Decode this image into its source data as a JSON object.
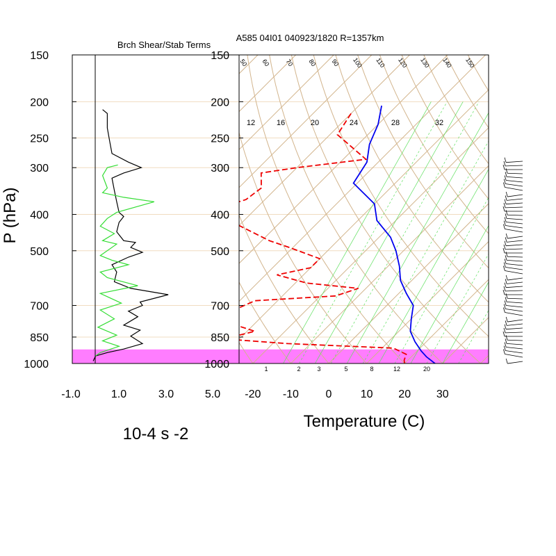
{
  "colors": {
    "background": "#ffffff",
    "isotherm_adiabat": "#d2b48c",
    "isobar_line": "#f0dcc0",
    "mixing_ratio": "#5fe05f",
    "temperature": "#0000ee",
    "dewpoint": "#ee0000",
    "shear_curve": "#000000",
    "stability_curve": "#33dd33",
    "highlight_band": "#ff66ff"
  },
  "chart_data": [
    {
      "type": "line",
      "title": "Brch Shear/Stab Terms",
      "xlabel": "10-4 s -2",
      "ylabel": "P (hPa)",
      "xlim": [
        -1.0,
        5.0
      ],
      "xticks": [
        "-1.0",
        "1.0",
        "3.0",
        "5.0"
      ],
      "yticks": [
        "150",
        "200",
        "250",
        "300",
        "400",
        "500",
        "700",
        "850",
        "1000"
      ],
      "y_scale": "log pressure (inverted)",
      "series": [
        {
          "color": "black",
          "points": [
            [
              0.3,
              210
            ],
            [
              0.5,
              215
            ],
            [
              0.5,
              235
            ],
            [
              0.6,
              255
            ],
            [
              0.7,
              275
            ],
            [
              1.4,
              290
            ],
            [
              1.95,
              300
            ],
            [
              1.2,
              310
            ],
            [
              0.7,
              320
            ],
            [
              0.8,
              345
            ],
            [
              0.9,
              370
            ],
            [
              1.0,
              395
            ],
            [
              1.2,
              405
            ],
            [
              1.0,
              420
            ],
            [
              0.9,
              445
            ],
            [
              1.2,
              470
            ],
            [
              1.7,
              475
            ],
            [
              1.5,
              490
            ],
            [
              2.0,
              505
            ],
            [
              1.4,
              520
            ],
            [
              0.7,
              545
            ],
            [
              0.9,
              570
            ],
            [
              0.8,
              605
            ],
            [
              1.5,
              630
            ],
            [
              3.1,
              655
            ],
            [
              1.9,
              685
            ],
            [
              2.0,
              700
            ],
            [
              1.4,
              725
            ],
            [
              1.8,
              750
            ],
            [
              1.2,
              790
            ],
            [
              1.9,
              815
            ],
            [
              1.5,
              845
            ],
            [
              2.0,
              885
            ],
            [
              1.2,
              915
            ],
            [
              0.5,
              935
            ],
            [
              0.0,
              955
            ],
            [
              -0.1,
              985
            ]
          ]
        },
        {
          "color": "green",
          "points": [
            [
              0.95,
              295
            ],
            [
              0.5,
              300
            ],
            [
              0.3,
              315
            ],
            [
              0.5,
              340
            ],
            [
              0.3,
              350
            ],
            [
              1.2,
              360
            ],
            [
              2.5,
              370
            ],
            [
              0.9,
              395
            ],
            [
              0.5,
              410
            ],
            [
              0.2,
              430
            ],
            [
              0.8,
              450
            ],
            [
              0.3,
              470
            ],
            [
              0.9,
              480
            ],
            [
              0.2,
              515
            ],
            [
              0.7,
              530
            ],
            [
              1.4,
              545
            ],
            [
              0.2,
              570
            ],
            [
              0.5,
              590
            ],
            [
              1.8,
              620
            ],
            [
              0.2,
              650
            ],
            [
              1.1,
              690
            ],
            [
              0.2,
              720
            ],
            [
              0.8,
              760
            ],
            [
              0.1,
              800
            ],
            [
              0.9,
              840
            ],
            [
              0.3,
              870
            ],
            [
              1.0,
              900
            ],
            [
              0.2,
              935
            ],
            [
              0.0,
              955
            ]
          ]
        }
      ]
    },
    {
      "type": "line",
      "title": "A585 04I01 040923/1820 R=1357km",
      "xlabel": "Temperature (C)",
      "ylabel": "",
      "xticks": [
        "-20",
        "-10",
        "0",
        "10",
        "20",
        "30"
      ],
      "yticks": [
        "150",
        "200",
        "250",
        "300",
        "400",
        "500",
        "700",
        "850",
        "1000"
      ],
      "skew_x": true,
      "mixing_ratio_labels_top": [
        "12",
        "16",
        "20",
        "24",
        "28",
        "32"
      ],
      "mixing_ratio_labels_bottom": [
        "1",
        "2",
        "3",
        "5",
        "8",
        "12",
        "20"
      ],
      "adiabat_labels_top": [
        "50",
        "60",
        "70",
        "80",
        "90",
        "100",
        "110",
        "120",
        "130",
        "140",
        "150"
      ],
      "highlight_band_hpa": [
        925,
        1000
      ],
      "series": [
        {
          "name": "Temperature",
          "color": "blue",
          "points": [
            [
              -54,
              205
            ],
            [
              -50,
              230
            ],
            [
              -47,
              260
            ],
            [
              -43,
              290
            ],
            [
              -41,
              330
            ],
            [
              -30,
              375
            ],
            [
              -25,
              415
            ],
            [
              -17,
              460
            ],
            [
              -12,
              500
            ],
            [
              -7,
              550
            ],
            [
              -3,
              600
            ],
            [
              2,
              650
            ],
            [
              7,
              700
            ],
            [
              10,
              760
            ],
            [
              13,
              820
            ],
            [
              17,
              875
            ],
            [
              21,
              925
            ],
            [
              24,
              960
            ],
            [
              28,
              1000
            ]
          ]
        },
        {
          "name": "Dewpoint",
          "color": "red",
          "points": [
            [
              -60,
              215
            ],
            [
              -58,
              245
            ],
            [
              -44,
              285
            ],
            [
              -60,
              300
            ],
            [
              -68,
              310
            ],
            [
              -64,
              340
            ],
            [
              -65,
              365
            ],
            [
              -70,
              385
            ],
            [
              -64,
              415
            ],
            [
              -48,
              470
            ],
            [
              -41,
              490
            ],
            [
              -30,
              525
            ],
            [
              -30,
              555
            ],
            [
              -37,
              580
            ],
            [
              -27,
              610
            ],
            [
              -12,
              630
            ],
            [
              -16,
              660
            ],
            [
              -36,
              680
            ],
            [
              -39,
              720
            ],
            [
              -38,
              775
            ],
            [
              -28,
              820
            ],
            [
              -34,
              860
            ],
            [
              -16,
              885
            ],
            [
              13,
              910
            ],
            [
              18,
              945
            ],
            [
              19,
              980
            ],
            [
              20,
              1000
            ]
          ]
        }
      ]
    }
  ]
}
